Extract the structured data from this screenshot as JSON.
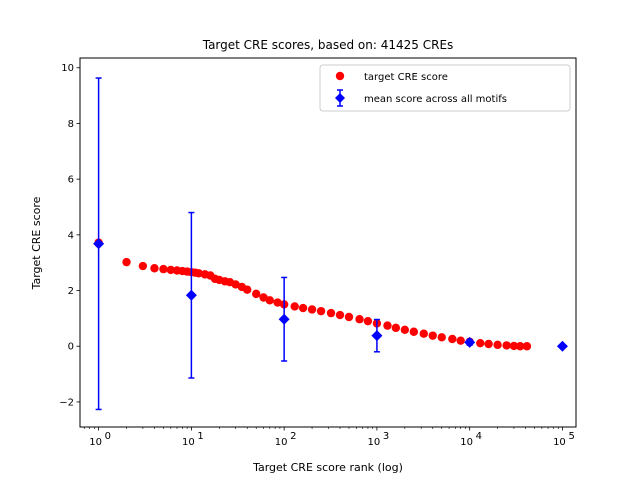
{
  "chart_data": {
    "type": "scatter",
    "title": "Target CRE scores, based on: 41425 CREs",
    "xlabel": "Target CRE score rank (log)",
    "ylabel": "Target CRE score",
    "xscale": "log",
    "xlim": [
      0.63,
      140000
    ],
    "ylim": [
      -2.9,
      10.35
    ],
    "x_ticks": [
      1,
      10,
      100,
      1000,
      10000,
      100000
    ],
    "x_tick_labels": [
      {
        "base": "10",
        "exp": "0"
      },
      {
        "base": "10",
        "exp": "1"
      },
      {
        "base": "10",
        "exp": "2"
      },
      {
        "base": "10",
        "exp": "3"
      },
      {
        "base": "10",
        "exp": "4"
      },
      {
        "base": "10",
        "exp": "5"
      }
    ],
    "y_ticks": [
      -2,
      0,
      2,
      4,
      6,
      8,
      10
    ],
    "y_tick_labels": [
      "−2",
      "0",
      "2",
      "4",
      "6",
      "8",
      "10"
    ],
    "grid": false,
    "legend_position": "top-right",
    "series": [
      {
        "name": "target CRE score",
        "kind": "points",
        "color": "#ff0000",
        "marker": "circle",
        "points": [
          {
            "x": 1,
            "y": 3.72
          },
          {
            "x": 2,
            "y": 3.02
          },
          {
            "x": 3,
            "y": 2.88
          },
          {
            "x": 4,
            "y": 2.8
          },
          {
            "x": 5,
            "y": 2.77
          },
          {
            "x": 6,
            "y": 2.74
          },
          {
            "x": 7,
            "y": 2.72
          },
          {
            "x": 8,
            "y": 2.7
          },
          {
            "x": 9,
            "y": 2.68
          },
          {
            "x": 10,
            "y": 2.66
          },
          {
            "x": 11,
            "y": 2.64
          },
          {
            "x": 12,
            "y": 2.62
          },
          {
            "x": 14,
            "y": 2.58
          },
          {
            "x": 16,
            "y": 2.54
          },
          {
            "x": 18,
            "y": 2.42
          },
          {
            "x": 20,
            "y": 2.38
          },
          {
            "x": 23,
            "y": 2.33
          },
          {
            "x": 26,
            "y": 2.3
          },
          {
            "x": 30,
            "y": 2.22
          },
          {
            "x": 35,
            "y": 2.13
          },
          {
            "x": 40,
            "y": 2.03
          },
          {
            "x": 50,
            "y": 1.88
          },
          {
            "x": 60,
            "y": 1.75
          },
          {
            "x": 70,
            "y": 1.65
          },
          {
            "x": 85,
            "y": 1.57
          },
          {
            "x": 100,
            "y": 1.5
          },
          {
            "x": 130,
            "y": 1.43
          },
          {
            "x": 160,
            "y": 1.37
          },
          {
            "x": 200,
            "y": 1.32
          },
          {
            "x": 250,
            "y": 1.26
          },
          {
            "x": 320,
            "y": 1.19
          },
          {
            "x": 400,
            "y": 1.12
          },
          {
            "x": 500,
            "y": 1.05
          },
          {
            "x": 650,
            "y": 0.97
          },
          {
            "x": 800,
            "y": 0.9
          },
          {
            "x": 1000,
            "y": 0.82
          },
          {
            "x": 1300,
            "y": 0.74
          },
          {
            "x": 1600,
            "y": 0.66
          },
          {
            "x": 2000,
            "y": 0.59
          },
          {
            "x": 2500,
            "y": 0.52
          },
          {
            "x": 3200,
            "y": 0.45
          },
          {
            "x": 4000,
            "y": 0.38
          },
          {
            "x": 5000,
            "y": 0.32
          },
          {
            "x": 6500,
            "y": 0.26
          },
          {
            "x": 8000,
            "y": 0.2
          },
          {
            "x": 10000,
            "y": 0.16
          },
          {
            "x": 13000,
            "y": 0.11
          },
          {
            "x": 16000,
            "y": 0.08
          },
          {
            "x": 20000,
            "y": 0.05
          },
          {
            "x": 25000,
            "y": 0.03
          },
          {
            "x": 30000,
            "y": 0.01
          },
          {
            "x": 35000,
            "y": 0.0
          },
          {
            "x": 41425,
            "y": 0.0
          }
        ]
      },
      {
        "name": "mean score across all motifs",
        "kind": "errorbar",
        "color": "#0000ff",
        "marker": "diamond",
        "points": [
          {
            "x": 1,
            "y": 3.68,
            "err": 5.95
          },
          {
            "x": 10,
            "y": 1.83,
            "err": 2.97
          },
          {
            "x": 100,
            "y": 0.97,
            "err": 1.5
          },
          {
            "x": 1000,
            "y": 0.38,
            "err": 0.58
          },
          {
            "x": 10000,
            "y": 0.14,
            "err": 0.1
          },
          {
            "x": 100000,
            "y": 0.0,
            "err": 0.0
          }
        ]
      }
    ]
  }
}
